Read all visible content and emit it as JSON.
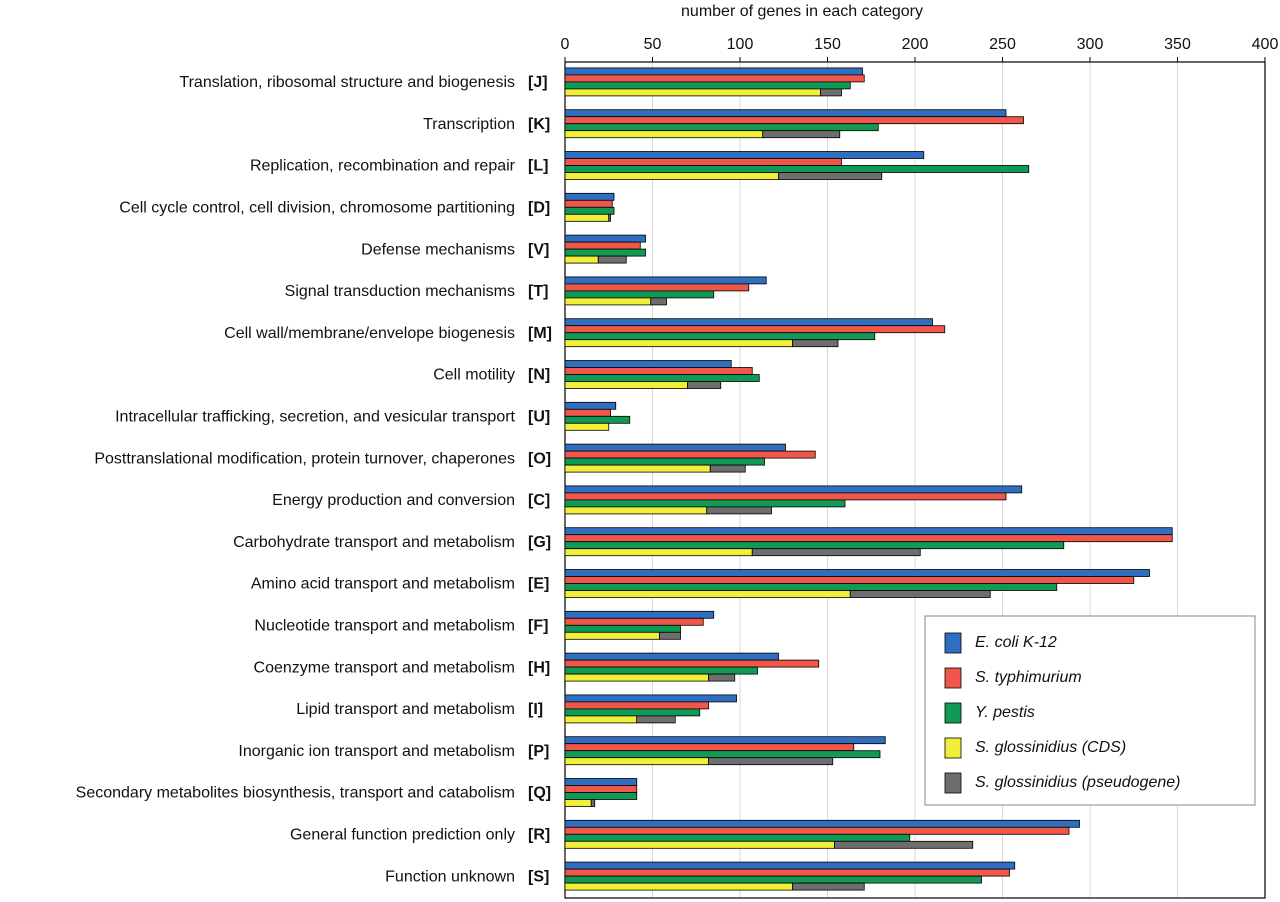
{
  "chart_data": {
    "type": "bar",
    "x_label": "number of genes in each category",
    "categories": [
      "Translation, ribosomal structure and biogenesis",
      "Transcription",
      "Replication, recombination and repair",
      "Cell cycle control, cell division, chromosome partitioning",
      "Defense mechanisms",
      "Signal transduction mechanisms",
      "Cell wall/membrane/envelope biogenesis",
      "Cell motility",
      "Intracellular trafficking, secretion, and vesicular transport",
      "Posttranslational modification, protein turnover, chaperones",
      "Energy production and conversion",
      "Carbohydrate transport and metabolism",
      "Amino acid transport and metabolism",
      "Nucleotide transport and metabolism",
      "Coenzyme transport and metabolism",
      "Lipid transport and metabolism",
      "Inorganic ion transport and metabolism",
      "Secondary metabolites biosynthesis, transport and catabolism",
      "General function prediction only",
      "Function unknown"
    ],
    "codes": [
      "[J]",
      "[K]",
      "[L]",
      "[D]",
      "[V]",
      "[T]",
      "[M]",
      "[N]",
      "[U]",
      "[O]",
      "[C]",
      "[G]",
      "[E]",
      "[F]",
      "[H]",
      "[I]",
      "[P]",
      "[Q]",
      "[R]",
      "[S]"
    ],
    "series": [
      {
        "name": "E. coli K-12",
        "color": "#2f6fc0",
        "values": [
          170,
          252,
          205,
          28,
          46,
          115,
          210,
          95,
          29,
          126,
          261,
          347,
          334,
          85,
          122,
          98,
          183,
          41,
          294,
          257
        ]
      },
      {
        "name": "S. typhimurium",
        "color": "#f0574a",
        "values": [
          171,
          262,
          158,
          27,
          43,
          105,
          217,
          107,
          26,
          143,
          252,
          347,
          325,
          79,
          145,
          82,
          165,
          41,
          288,
          254
        ]
      },
      {
        "name": "Y. pestis",
        "color": "#109a55",
        "values": [
          163,
          179,
          265,
          28,
          46,
          85,
          177,
          111,
          37,
          114,
          160,
          285,
          281,
          66,
          110,
          77,
          180,
          41,
          197,
          238
        ]
      },
      {
        "name": "S. glossinidius (CDS)",
        "color": "#f2ef3a",
        "values": [
          146,
          113,
          122,
          25,
          19,
          49,
          130,
          70,
          25,
          83,
          81,
          107,
          163,
          54,
          82,
          41,
          82,
          15,
          154,
          130
        ]
      },
      {
        "name": "S. glossinidius (pseudogene)",
        "color": "#6e6e6e",
        "stacked_on": 3,
        "values": [
          12,
          44,
          59,
          1,
          16,
          9,
          26,
          19,
          0,
          20,
          37,
          96,
          80,
          12,
          15,
          22,
          71,
          2,
          79,
          41
        ]
      }
    ],
    "xlim": [
      0,
      400
    ],
    "xticks": [
      0,
      50,
      100,
      150,
      200,
      250,
      300,
      350,
      400
    ],
    "grid": true,
    "legend": "lower right"
  }
}
